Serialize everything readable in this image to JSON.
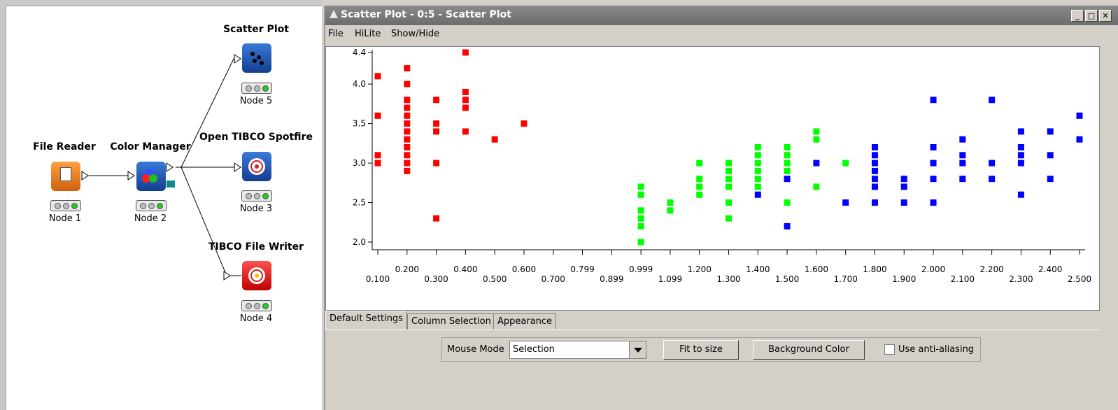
{
  "workflow": {
    "nodes": [
      {
        "title": "File Reader",
        "label": "Node 1",
        "icon": "file-reader-icon"
      },
      {
        "title": "Color Manager",
        "label": "Node 2",
        "icon": "color-manager-icon"
      },
      {
        "title": "Scatter Plot",
        "label": "Node 5",
        "icon": "scatter-plot-icon"
      },
      {
        "title": "Open TIBCO Spotfire",
        "label": "Node 3",
        "icon": "spotfire-icon"
      },
      {
        "title": "TIBCO File Writer",
        "label": "Node 4",
        "icon": "file-writer-icon"
      }
    ]
  },
  "window": {
    "title": "Scatter Plot - 0:5 - Scatter Plot",
    "buttons": {
      "minimize": "_",
      "maximize": "□",
      "close": "✕"
    }
  },
  "menu": {
    "file": "File",
    "hilite": "HiLite",
    "showhide": "Show/Hide"
  },
  "tabs": {
    "default": "Default Settings",
    "columns": "Column Selection",
    "appearance": "Appearance"
  },
  "controls": {
    "mouse_mode_label": "Mouse Mode",
    "mouse_mode_value": "Selection",
    "fit_to_size": "Fit to size",
    "background_color": "Background Color",
    "anti_aliasing": "Use anti-aliasing"
  },
  "colors": {
    "red": "#ff0000",
    "green": "#00ff00",
    "blue": "#0000ff"
  },
  "chart_data": {
    "type": "scatter",
    "x_ticks": [
      "0.100",
      "0.200",
      "0.300",
      "0.400",
      "0.500",
      "0.600",
      "0.700",
      "0.799",
      "0.899",
      "0.999",
      "1.099",
      "1.200",
      "1.300",
      "1.400",
      "1.500",
      "1.600",
      "1.700",
      "1.800",
      "1.900",
      "2.000",
      "2.100",
      "2.200",
      "2.300",
      "2.400",
      "2.500"
    ],
    "y_ticks": [
      "2.0",
      "2.5",
      "3.0",
      "3.5",
      "4.0",
      "4.4"
    ],
    "xlim": [
      0.1,
      2.5
    ],
    "ylim": [
      2.0,
      4.4
    ],
    "series": [
      {
        "color": "#ff0000",
        "points": [
          [
            0.1,
            4.1
          ],
          [
            0.1,
            3.6
          ],
          [
            0.1,
            3.1
          ],
          [
            0.1,
            3.0
          ],
          [
            0.2,
            4.2
          ],
          [
            0.2,
            4.0
          ],
          [
            0.2,
            3.8
          ],
          [
            0.2,
            3.7
          ],
          [
            0.2,
            3.6
          ],
          [
            0.2,
            3.5
          ],
          [
            0.2,
            3.4
          ],
          [
            0.2,
            3.3
          ],
          [
            0.2,
            3.2
          ],
          [
            0.2,
            3.1
          ],
          [
            0.2,
            3.0
          ],
          [
            0.2,
            2.9
          ],
          [
            0.3,
            3.8
          ],
          [
            0.3,
            3.5
          ],
          [
            0.3,
            3.4
          ],
          [
            0.3,
            3.0
          ],
          [
            0.3,
            2.3
          ],
          [
            0.4,
            4.4
          ],
          [
            0.4,
            3.9
          ],
          [
            0.4,
            3.8
          ],
          [
            0.4,
            3.7
          ],
          [
            0.4,
            3.4
          ],
          [
            0.5,
            3.3
          ],
          [
            0.6,
            3.5
          ]
        ]
      },
      {
        "color": "#00ff00",
        "points": [
          [
            1.0,
            2.7
          ],
          [
            1.0,
            2.6
          ],
          [
            1.0,
            2.4
          ],
          [
            1.0,
            2.3
          ],
          [
            1.0,
            2.2
          ],
          [
            1.0,
            2.0
          ],
          [
            1.1,
            2.5
          ],
          [
            1.1,
            2.4
          ],
          [
            1.2,
            3.0
          ],
          [
            1.2,
            2.8
          ],
          [
            1.2,
            2.7
          ],
          [
            1.2,
            2.6
          ],
          [
            1.3,
            3.0
          ],
          [
            1.3,
            2.9
          ],
          [
            1.3,
            2.8
          ],
          [
            1.3,
            2.7
          ],
          [
            1.3,
            2.5
          ],
          [
            1.3,
            2.3
          ],
          [
            1.4,
            3.2
          ],
          [
            1.4,
            3.1
          ],
          [
            1.4,
            3.0
          ],
          [
            1.4,
            2.9
          ],
          [
            1.4,
            2.8
          ],
          [
            1.4,
            2.7
          ],
          [
            1.5,
            3.2
          ],
          [
            1.5,
            3.1
          ],
          [
            1.5,
            3.0
          ],
          [
            1.5,
            2.9
          ],
          [
            1.5,
            2.5
          ],
          [
            1.6,
            3.4
          ],
          [
            1.6,
            3.3
          ],
          [
            1.6,
            2.7
          ],
          [
            1.7,
            3.0
          ]
        ]
      },
      {
        "color": "#0000ff",
        "points": [
          [
            1.4,
            2.6
          ],
          [
            1.5,
            2.8
          ],
          [
            1.5,
            2.2
          ],
          [
            1.6,
            3.0
          ],
          [
            1.7,
            2.5
          ],
          [
            1.8,
            3.2
          ],
          [
            1.8,
            3.1
          ],
          [
            1.8,
            3.0
          ],
          [
            1.8,
            2.9
          ],
          [
            1.8,
            2.8
          ],
          [
            1.8,
            2.7
          ],
          [
            1.8,
            2.5
          ],
          [
            1.9,
            2.8
          ],
          [
            1.9,
            2.7
          ],
          [
            1.9,
            2.5
          ],
          [
            2.0,
            3.8
          ],
          [
            2.0,
            3.2
          ],
          [
            2.0,
            3.0
          ],
          [
            2.0,
            2.8
          ],
          [
            2.0,
            2.5
          ],
          [
            2.1,
            3.3
          ],
          [
            2.1,
            3.1
          ],
          [
            2.1,
            3.0
          ],
          [
            2.1,
            2.8
          ],
          [
            2.2,
            3.8
          ],
          [
            2.2,
            3.0
          ],
          [
            2.2,
            2.8
          ],
          [
            2.3,
            3.4
          ],
          [
            2.3,
            3.2
          ],
          [
            2.3,
            3.1
          ],
          [
            2.3,
            3.0
          ],
          [
            2.3,
            2.6
          ],
          [
            2.4,
            3.4
          ],
          [
            2.4,
            3.1
          ],
          [
            2.4,
            2.8
          ],
          [
            2.5,
            3.6
          ],
          [
            2.5,
            3.3
          ]
        ]
      }
    ],
    "grid": false,
    "legend": "none"
  }
}
